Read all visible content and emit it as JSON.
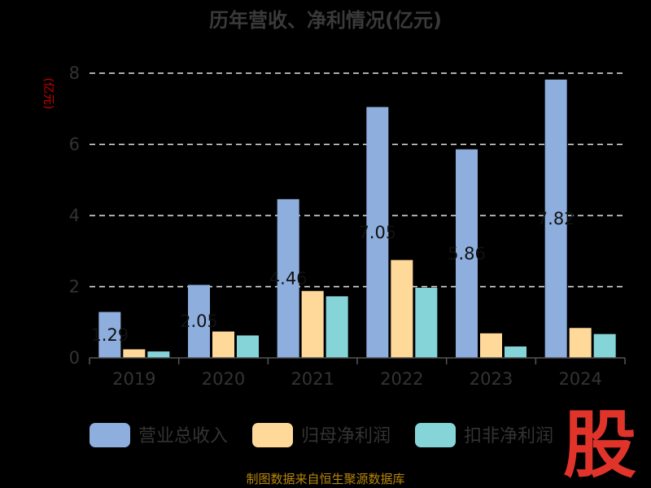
{
  "chart_data": {
    "type": "bar",
    "title": "历年营收、净利情况(亿元)",
    "ylabel": "(亿元)",
    "categories": [
      "2019",
      "2020",
      "2021",
      "2022",
      "2023",
      "2024"
    ],
    "series": [
      {
        "name": "营业总收入",
        "color": "#8eaedd",
        "values": [
          1.29,
          2.05,
          4.46,
          7.05,
          5.86,
          7.82
        ]
      },
      {
        "name": "归母净利润",
        "color": "#ffd99a",
        "values": [
          0.24,
          0.74,
          1.88,
          2.75,
          0.69,
          0.84
        ]
      },
      {
        "name": "扣非净利润",
        "color": "#85d5d8",
        "values": [
          0.18,
          0.63,
          1.73,
          1.97,
          0.32,
          0.67
        ]
      }
    ],
    "data_labels": [
      "1.29",
      "2.05",
      "4.46",
      "7.05",
      "5.86",
      "7.82"
    ],
    "ylim": [
      0,
      8
    ],
    "yticks": [
      "0",
      "2",
      "4",
      "6",
      "8"
    ],
    "grid": true,
    "legend_position": "bottom"
  },
  "footer": "制图数据来自恒生聚源数据库",
  "logo_text": "股"
}
